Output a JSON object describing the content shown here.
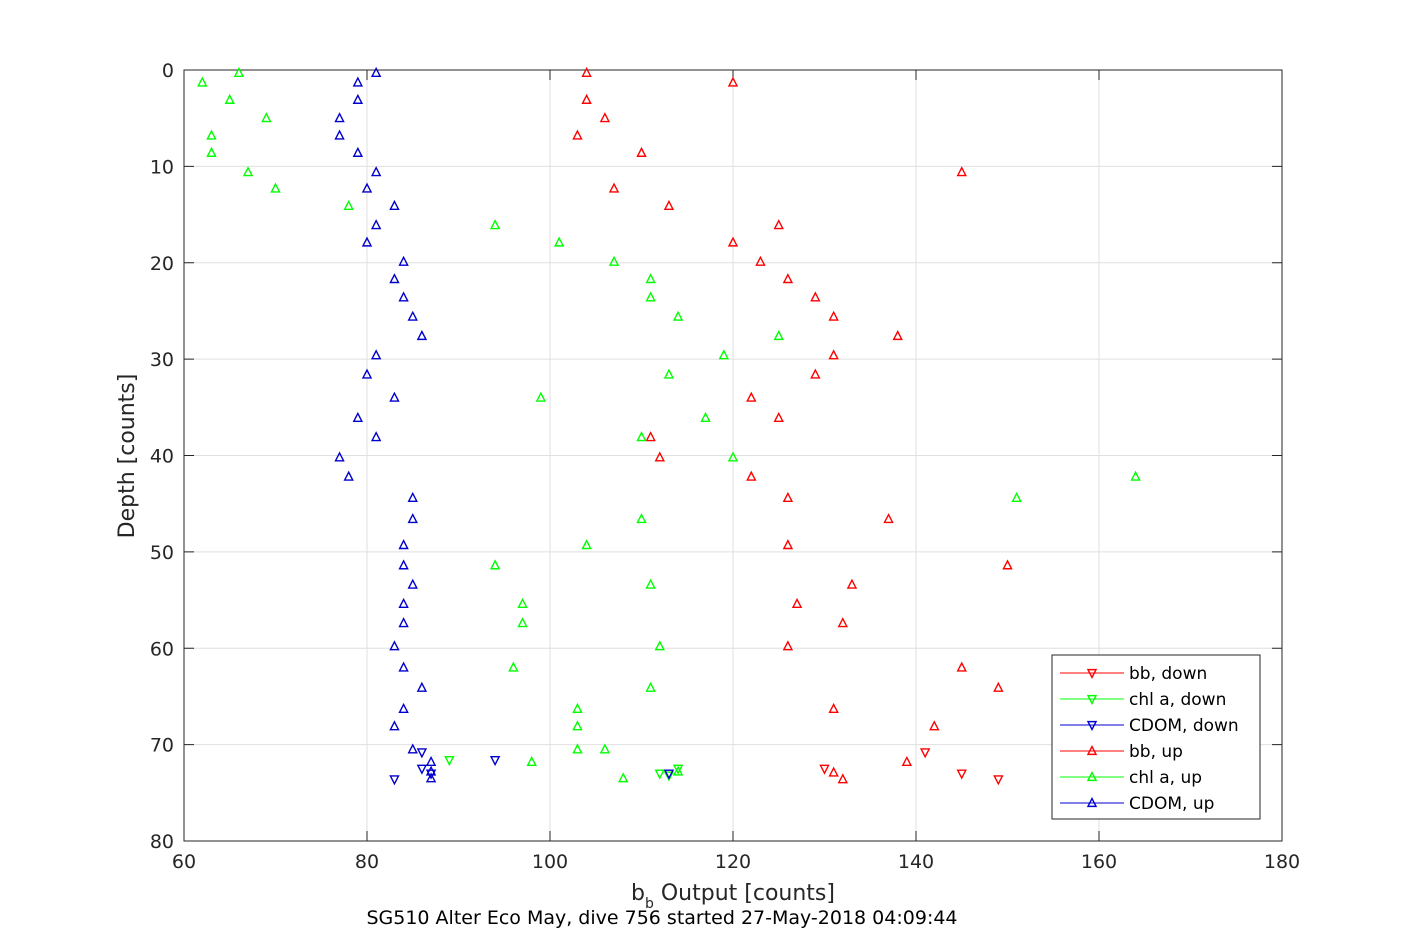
{
  "chart_data": {
    "type": "scatter",
    "caption": "SG510 Alter Eco May, dive 756 started 27-May-2018 04:09:44",
    "xlabel_main": "b",
    "xlabel_sub": "b",
    "xlabel_rest": " Output [counts]",
    "ylabel": "Depth [counts]",
    "xlim": [
      60,
      180
    ],
    "ylim": [
      0,
      80
    ],
    "y_reversed": true,
    "grid": true,
    "legend_position": "bottom-right",
    "xticks": [
      "60",
      "80",
      "100",
      "120",
      "140",
      "160",
      "180"
    ],
    "yticks": [
      "0",
      "10",
      "20",
      "30",
      "40",
      "50",
      "60",
      "70",
      "80"
    ],
    "series": [
      {
        "name": "bb, down",
        "color": "#ff0000",
        "marker": "triangle-down",
        "points": [
          [
            141,
            70.8
          ],
          [
            130,
            72.5
          ],
          [
            145,
            73.0
          ],
          [
            149,
            73.6
          ]
        ]
      },
      {
        "name": "chl a, down",
        "color": "#00ff00",
        "marker": "triangle-down",
        "points": [
          [
            89,
            71.6
          ],
          [
            113,
            73.2
          ],
          [
            114,
            72.5
          ],
          [
            112,
            73.0
          ]
        ]
      },
      {
        "name": "CDOM, down",
        "color": "#0000cc",
        "marker": "triangle-down",
        "points": [
          [
            86,
            70.8
          ],
          [
            94,
            71.6
          ],
          [
            86,
            72.5
          ],
          [
            87,
            73.0
          ],
          [
            83,
            73.6
          ],
          [
            113,
            73.0
          ]
        ]
      },
      {
        "name": "bb, up",
        "color": "#ff0000",
        "marker": "triangle-up",
        "points": [
          [
            104,
            0.3
          ],
          [
            120,
            1.3
          ],
          [
            104,
            3.1
          ],
          [
            106,
            5.0
          ],
          [
            103,
            6.8
          ],
          [
            110,
            8.6
          ],
          [
            145,
            10.6
          ],
          [
            107,
            12.3
          ],
          [
            113,
            14.1
          ],
          [
            125,
            16.1
          ],
          [
            120,
            17.9
          ],
          [
            123,
            19.9
          ],
          [
            126,
            21.7
          ],
          [
            129,
            23.6
          ],
          [
            131,
            25.6
          ],
          [
            138,
            27.6
          ],
          [
            131,
            29.6
          ],
          [
            129,
            31.6
          ],
          [
            122,
            34.0
          ],
          [
            125,
            36.1
          ],
          [
            111,
            38.1
          ],
          [
            112,
            40.2
          ],
          [
            122,
            42.2
          ],
          [
            126,
            44.4
          ],
          [
            137,
            46.6
          ],
          [
            126,
            49.3
          ],
          [
            150,
            51.4
          ],
          [
            133,
            53.4
          ],
          [
            127,
            55.4
          ],
          [
            132,
            57.4
          ],
          [
            126,
            59.8
          ],
          [
            145,
            62.0
          ],
          [
            149,
            64.1
          ],
          [
            131,
            66.3
          ],
          [
            142,
            68.1
          ],
          [
            139,
            71.8
          ],
          [
            131,
            72.9
          ],
          [
            132,
            73.6
          ]
        ]
      },
      {
        "name": "chl a, up",
        "color": "#00ff00",
        "marker": "triangle-up",
        "points": [
          [
            66,
            0.3
          ],
          [
            62,
            1.3
          ],
          [
            65,
            3.1
          ],
          [
            69,
            5.0
          ],
          [
            63,
            6.8
          ],
          [
            63,
            8.6
          ],
          [
            67,
            10.6
          ],
          [
            70,
            12.3
          ],
          [
            78,
            14.1
          ],
          [
            94,
            16.1
          ],
          [
            101,
            17.9
          ],
          [
            107,
            19.9
          ],
          [
            111,
            21.7
          ],
          [
            111,
            23.6
          ],
          [
            114,
            25.6
          ],
          [
            125,
            27.6
          ],
          [
            119,
            29.6
          ],
          [
            113,
            31.6
          ],
          [
            99,
            34.0
          ],
          [
            117,
            36.1
          ],
          [
            110,
            38.1
          ],
          [
            120,
            40.2
          ],
          [
            164,
            42.2
          ],
          [
            151,
            44.4
          ],
          [
            110,
            46.6
          ],
          [
            104,
            49.3
          ],
          [
            94,
            51.4
          ],
          [
            111,
            53.4
          ],
          [
            97,
            55.4
          ],
          [
            97,
            57.4
          ],
          [
            112,
            59.8
          ],
          [
            96,
            62.0
          ],
          [
            111,
            64.1
          ],
          [
            103,
            66.3
          ],
          [
            103,
            68.1
          ],
          [
            103,
            70.5
          ],
          [
            106,
            70.5
          ],
          [
            98,
            71.8
          ],
          [
            114,
            72.8
          ],
          [
            108,
            73.5
          ]
        ]
      },
      {
        "name": "CDOM, up",
        "color": "#0000cc",
        "marker": "triangle-up",
        "points": [
          [
            81,
            0.3
          ],
          [
            79,
            1.3
          ],
          [
            79,
            3.1
          ],
          [
            77,
            5.0
          ],
          [
            77,
            6.8
          ],
          [
            79,
            8.6
          ],
          [
            81,
            10.6
          ],
          [
            80,
            12.3
          ],
          [
            83,
            14.1
          ],
          [
            81,
            16.1
          ],
          [
            80,
            17.9
          ],
          [
            84,
            19.9
          ],
          [
            83,
            21.7
          ],
          [
            84,
            23.6
          ],
          [
            85,
            25.6
          ],
          [
            86,
            27.6
          ],
          [
            81,
            29.6
          ],
          [
            80,
            31.6
          ],
          [
            83,
            34.0
          ],
          [
            79,
            36.1
          ],
          [
            81,
            38.1
          ],
          [
            77,
            40.2
          ],
          [
            78,
            42.2
          ],
          [
            85,
            44.4
          ],
          [
            85,
            46.6
          ],
          [
            84,
            49.3
          ],
          [
            84,
            51.4
          ],
          [
            85,
            53.4
          ],
          [
            84,
            55.4
          ],
          [
            84,
            57.4
          ],
          [
            83,
            59.8
          ],
          [
            84,
            62.0
          ],
          [
            86,
            64.1
          ],
          [
            84,
            66.3
          ],
          [
            83,
            68.1
          ],
          [
            85,
            70.5
          ],
          [
            87,
            71.8
          ],
          [
            87,
            72.8
          ],
          [
            87,
            73.5
          ]
        ]
      }
    ]
  }
}
